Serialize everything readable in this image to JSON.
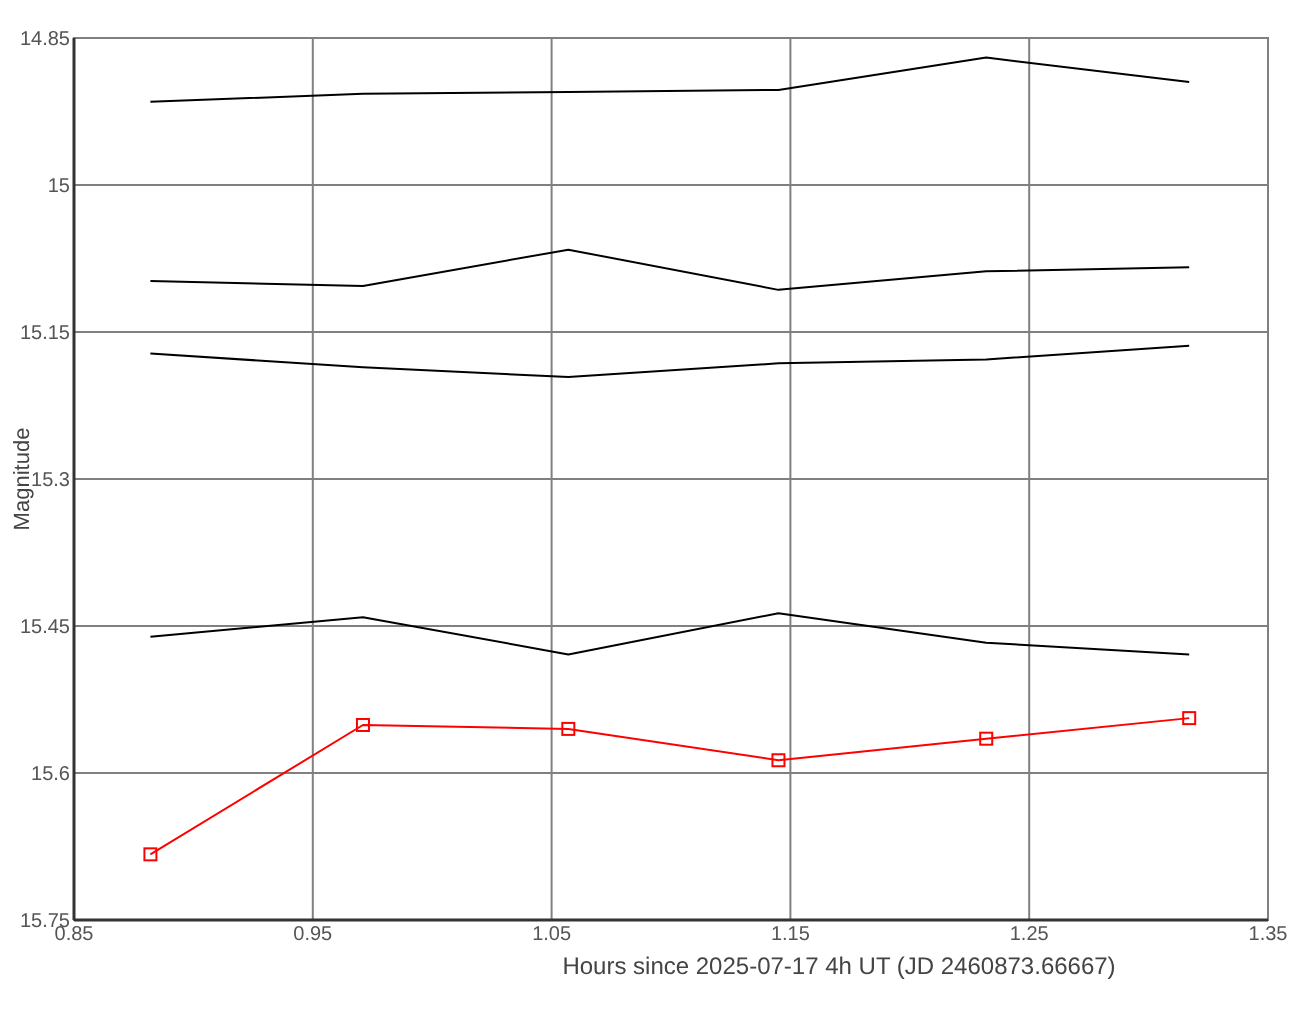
{
  "chart_data": {
    "type": "line",
    "xlabel": "Hours since 2025-07-17 4h UT (JD 2460873.66667)",
    "ylabel": "Magnitude",
    "x": [
      0.882,
      0.971,
      1.057,
      1.145,
      1.232,
      1.317
    ],
    "series": [
      {
        "color": "#000000",
        "marker": "none",
        "values": [
          14.915,
          14.907,
          14.905,
          14.903,
          14.87,
          14.895
        ]
      },
      {
        "color": "#000000",
        "marker": "none",
        "values": [
          15.098,
          15.103,
          15.066,
          15.107,
          15.088,
          15.084
        ]
      },
      {
        "color": "#000000",
        "marker": "none",
        "values": [
          15.172,
          15.186,
          15.196,
          15.182,
          15.178,
          15.164
        ]
      },
      {
        "color": "#000000",
        "marker": "none",
        "values": [
          15.461,
          15.441,
          15.479,
          15.437,
          15.467,
          15.479
        ]
      },
      {
        "color": "#ff0000",
        "marker": "square",
        "values": [
          15.683,
          15.551,
          15.555,
          15.587,
          15.565,
          15.544
        ]
      }
    ],
    "xlim": [
      0.85,
      1.35
    ],
    "xticks": [
      0.85,
      0.95,
      1.05,
      1.15,
      1.25,
      1.35
    ],
    "ylim": [
      15.75,
      14.85
    ],
    "yticks": [
      14.85,
      15,
      15.15,
      15.3,
      15.45,
      15.6,
      15.75
    ],
    "grid": true,
    "line_style": "solid"
  }
}
